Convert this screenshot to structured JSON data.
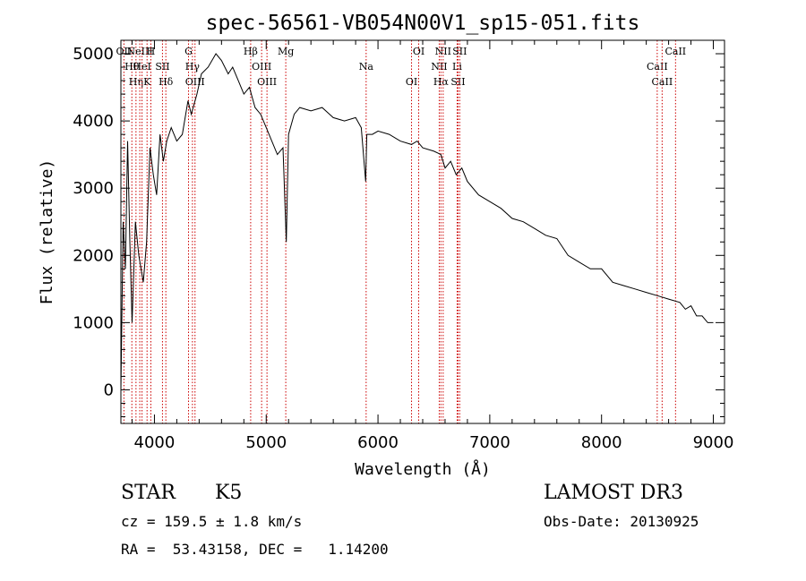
{
  "chart_data": {
    "type": "line",
    "title": "spec-56561-VB054N00V1_sp15-051.fits",
    "xlabel": "Wavelength (Å)",
    "ylabel": "Flux (relative)",
    "xlim": [
      3700,
      9100
    ],
    "ylim": [
      -500,
      5200
    ],
    "xticks": [
      4000,
      5000,
      6000,
      7000,
      8000,
      9000
    ],
    "yticks": [
      0,
      1000,
      2000,
      3000,
      4000,
      5000
    ],
    "grid": false,
    "series": [
      {
        "x": [
          3700,
          3720,
          3740,
          3760,
          3780,
          3800,
          3830,
          3860,
          3880,
          3900,
          3930,
          3960,
          3990,
          4020,
          4050,
          4080,
          4110,
          4150,
          4200,
          4250,
          4300,
          4330,
          4380,
          4420,
          4480,
          4550,
          4600,
          4660,
          4700,
          4750,
          4800,
          4850,
          4900,
          4950,
          5000,
          5050,
          5100,
          5150,
          5180,
          5200,
          5250,
          5300,
          5400,
          5500,
          5600,
          5700,
          5800,
          5850,
          5890,
          5900,
          5950,
          6000,
          6100,
          6200,
          6300,
          6350,
          6400,
          6500,
          6563,
          6600,
          6650,
          6700,
          6750,
          6800,
          6900,
          7000,
          7100,
          7200,
          7300,
          7400,
          7500,
          7600,
          7700,
          7800,
          7900,
          8000,
          8100,
          8200,
          8300,
          8400,
          8500,
          8600,
          8700,
          8750,
          8800,
          8850,
          8900,
          8950,
          9000
        ],
        "y": [
          0,
          2500,
          1800,
          3700,
          2200,
          1000,
          2500,
          2000,
          1800,
          1600,
          2200,
          3600,
          3200,
          2900,
          3800,
          3400,
          3700,
          3900,
          3700,
          3800,
          4300,
          4100,
          4400,
          4700,
          4800,
          5000,
          4900,
          4700,
          4800,
          4600,
          4400,
          4500,
          4200,
          4100,
          3900,
          3700,
          3500,
          3600,
          2200,
          3800,
          4100,
          4200,
          4150,
          4200,
          4050,
          4000,
          4050,
          3900,
          3100,
          3800,
          3800,
          3850,
          3800,
          3700,
          3650,
          3700,
          3600,
          3550,
          3500,
          3300,
          3400,
          3200,
          3300,
          3100,
          2900,
          2800,
          2700,
          2550,
          2500,
          2400,
          2300,
          2250,
          2000,
          1900,
          1800,
          1800,
          1600,
          1550,
          1500,
          1450,
          1400,
          1350,
          1300,
          1200,
          1250,
          1100,
          1100,
          1000,
          1000
        ]
      }
    ],
    "lines": [
      {
        "w": 3727,
        "label": "OII"
      },
      {
        "w": 3798,
        "label": "Hθ"
      },
      {
        "w": 3835,
        "label": "Hη"
      },
      {
        "w": 3869,
        "label": "NeIII"
      },
      {
        "w": 3889,
        "label": "HeI"
      },
      {
        "w": 3934,
        "label": "K"
      },
      {
        "w": 3968,
        "label": "H"
      },
      {
        "w": 4072,
        "label": "SII"
      },
      {
        "w": 4102,
        "label": "Hδ"
      },
      {
        "w": 4305,
        "label": "G"
      },
      {
        "w": 4340,
        "label": "Hγ"
      },
      {
        "w": 4363,
        "label": "OIII"
      },
      {
        "w": 4861,
        "label": "Hβ"
      },
      {
        "w": 4959,
        "label": "OIII"
      },
      {
        "w": 5007,
        "label": "OIII"
      },
      {
        "w": 5175,
        "label": "Mg"
      },
      {
        "w": 5894,
        "label": "Na"
      },
      {
        "w": 6300,
        "label": "OI"
      },
      {
        "w": 6364,
        "label": "OI"
      },
      {
        "w": 6548,
        "label": "NII"
      },
      {
        "w": 6563,
        "label": "Hα"
      },
      {
        "w": 6583,
        "label": "NII"
      },
      {
        "w": 6708,
        "label": "Li"
      },
      {
        "w": 6716,
        "label": "SII"
      },
      {
        "w": 6731,
        "label": "SII"
      },
      {
        "w": 8498,
        "label": "CaII"
      },
      {
        "w": 8542,
        "label": "CaII"
      },
      {
        "w": 8662,
        "label": "CaII"
      }
    ]
  },
  "info": {
    "object_class": "STAR",
    "subclass": "K5",
    "survey": "LAMOST DR3",
    "cz": "cz = 159.5 ± 1.8 km/s",
    "obs_date": "Obs-Date: 20130925",
    "coords": "RA =  53.43158, DEC =   1.14200"
  },
  "colors": {
    "spectrum": "#000000",
    "line_marker": "#cc0000",
    "axes": "#000000"
  }
}
